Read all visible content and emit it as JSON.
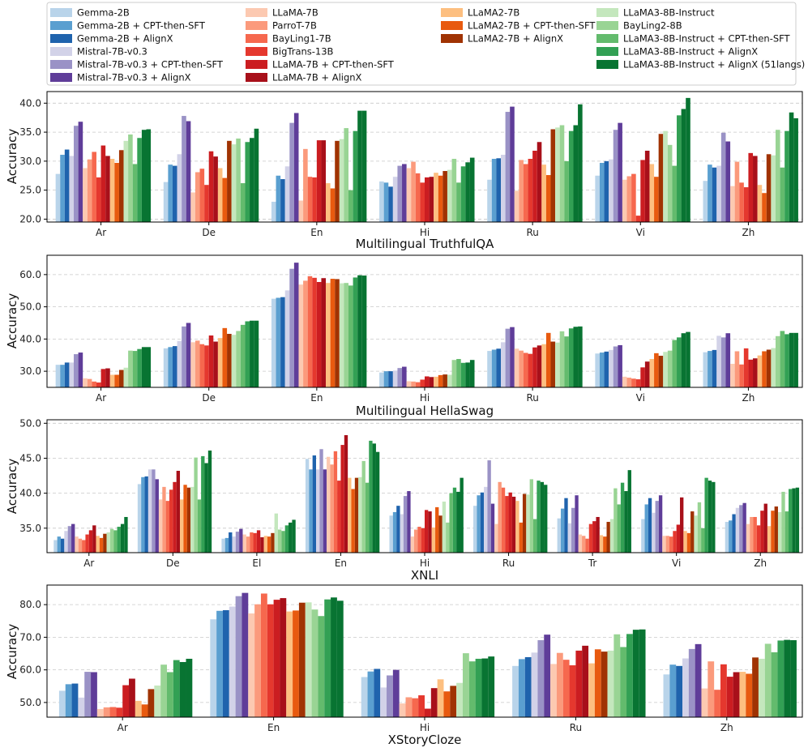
{
  "models": [
    {
      "name": "Gemma-2B",
      "color": "#b9d4ea"
    },
    {
      "name": "Gemma-2B + CPT-then-SFT",
      "color": "#5a9fd0"
    },
    {
      "name": "Gemma-2B + AlignX",
      "color": "#1f63ad"
    },
    {
      "name": "Mistral-7B-v0.3",
      "color": "#d2d2e8"
    },
    {
      "name": "Mistral-7B-v0.3 + CPT-then-SFT",
      "color": "#9a92c6"
    },
    {
      "name": "Mistral-7B-v0.3 + AlignX",
      "color": "#5f3d99"
    },
    {
      "name": "LLaMA-7B",
      "color": "#fcc9b1"
    },
    {
      "name": "ParroT-7B",
      "color": "#fb9a7c"
    },
    {
      "name": "BayLing1-7B",
      "color": "#f6684e"
    },
    {
      "name": "BigTrans-13B",
      "color": "#e5382e"
    },
    {
      "name": "LLaMA-7B + CPT-then-SFT",
      "color": "#cb1d21"
    },
    {
      "name": "LLaMA-7B + AlignX",
      "color": "#a8101a"
    },
    {
      "name": "LLaMA2-7B",
      "color": "#fdbf80"
    },
    {
      "name": "LLaMA2-7B + CPT-then-SFT",
      "color": "#e85a0f"
    },
    {
      "name": "LLaMA2-7B + AlignX",
      "color": "#a03303"
    },
    {
      "name": "LLaMA3-8B-Instruct",
      "color": "#c4e7bd"
    },
    {
      "name": "BayLing2-8B",
      "color": "#99d494"
    },
    {
      "name": "LLaMA3-8B-Instruct + CPT-then-SFT",
      "color": "#63bb6d"
    },
    {
      "name": "LLaMA3-8B-Instruct + AlignX",
      "color": "#32a054"
    },
    {
      "name": "LLaMA3-8B-Instruct + AlignX (51langs)",
      "color": "#087432"
    }
  ],
  "chart_data": [
    {
      "type": "bar",
      "title": "Multilingual TruthfulQA",
      "xlabel": "Multilingual TruthfulQA",
      "ylabel": "Accuracy",
      "ylim": [
        19.5,
        42.0
      ],
      "yticks": [
        20.0,
        25.0,
        30.0,
        35.0,
        40.0
      ],
      "grid": true,
      "categories": [
        "Ar",
        "De",
        "En",
        "Hi",
        "Ru",
        "Vi",
        "Zh"
      ],
      "values": [
        [
          27.8,
          31.1,
          32.0,
          30.9,
          36.1,
          36.8,
          28.8,
          30.3,
          31.6,
          27.2,
          32.7,
          30.9,
          30.4,
          29.7,
          31.9,
          33.5,
          34.6,
          29.5,
          34.0,
          35.4
        ],
        [
          26.4,
          29.4,
          29.2,
          31.2,
          37.8,
          36.9,
          24.6,
          28.1,
          28.7,
          25.9,
          31.7,
          30.8,
          28.8,
          27.1,
          33.5,
          32.9,
          33.9,
          26.2,
          33.3,
          34.0
        ],
        [
          23.0,
          27.5,
          26.9,
          29.1,
          36.6,
          38.3,
          23.2,
          32.1,
          27.3,
          27.2,
          33.6,
          33.6,
          26.2,
          25.3,
          33.5,
          33.8,
          35.7,
          25.0,
          35.2,
          38.7
        ],
        [
          26.5,
          26.3,
          25.6,
          27.3,
          29.2,
          29.5,
          28.8,
          29.9,
          27.9,
          26.3,
          27.2,
          27.3,
          28.0,
          27.5,
          28.3,
          28.5,
          30.4,
          26.3,
          29.1,
          29.8
        ],
        [
          26.8,
          30.4,
          30.5,
          31.1,
          38.5,
          39.4,
          24.9,
          30.2,
          29.5,
          30.4,
          31.8,
          33.3,
          29.4,
          27.6,
          35.5,
          35.8,
          36.2,
          30.0,
          35.2,
          36.2
        ],
        [
          27.5,
          29.7,
          30.0,
          30.3,
          35.4,
          36.6,
          26.8,
          27.4,
          27.8,
          20.6,
          30.2,
          31.8,
          29.5,
          27.3,
          34.7,
          35.2,
          32.8,
          29.2,
          37.9,
          39.0
        ],
        [
          26.6,
          29.4,
          28.9,
          29.2,
          34.9,
          33.4,
          25.7,
          29.9,
          26.3,
          25.5,
          31.4,
          30.9,
          25.9,
          24.5,
          31.2,
          31.0,
          35.4,
          28.9,
          35.2,
          38.4
        ]
      ],
      "extra_last": [
        35.5,
        35.6,
        38.7,
        30.6,
        39.8,
        40.9,
        37.4
      ]
    },
    {
      "type": "bar",
      "title": "Multilingual HellaSwag",
      "xlabel": "Multilingual HellaSwag",
      "ylabel": "Accuracy",
      "ylim": [
        25.0,
        66.0
      ],
      "yticks": [
        30.0,
        40.0,
        50.0,
        60.0
      ],
      "grid": true,
      "categories": [
        "Ar",
        "De",
        "En",
        "Hi",
        "Ru",
        "Vi",
        "Zh"
      ],
      "values": [
        [
          32.0,
          32.0,
          32.7,
          32.7,
          35.3,
          35.8,
          27.8,
          27.6,
          26.8,
          26.5,
          30.7,
          30.9,
          28.9,
          28.9,
          30.4,
          31.1,
          36.4,
          36.3,
          36.9,
          37.5
        ],
        [
          37.1,
          37.5,
          37.8,
          39.4,
          43.9,
          45.0,
          39.0,
          39.5,
          38.4,
          38.0,
          41.1,
          39.2,
          40.3,
          43.4,
          41.6,
          41.3,
          42.5,
          44.4,
          45.5,
          45.7
        ],
        [
          52.5,
          52.8,
          53.0,
          55.1,
          61.8,
          63.7,
          56.9,
          58.1,
          59.5,
          59.0,
          57.7,
          58.9,
          57.4,
          58.7,
          58.6,
          57.3,
          57.4,
          56.6,
          59.1,
          59.8
        ],
        [
          29.6,
          30.0,
          30.0,
          30.2,
          31.0,
          31.4,
          26.9,
          26.8,
          26.6,
          27.4,
          28.4,
          28.2,
          28.3,
          28.8,
          29.0,
          28.9,
          33.5,
          33.8,
          32.6,
          32.7
        ],
        [
          36.3,
          36.7,
          37.0,
          39.0,
          43.2,
          43.7,
          37.0,
          36.4,
          35.7,
          35.4,
          37.4,
          38.0,
          38.4,
          41.9,
          39.2,
          38.9,
          42.4,
          40.8,
          43.3,
          43.8
        ],
        [
          35.5,
          35.8,
          36.1,
          36.6,
          37.7,
          38.1,
          28.3,
          28.0,
          27.7,
          27.5,
          31.2,
          33.0,
          33.8,
          35.6,
          34.8,
          36.0,
          36.4,
          39.7,
          40.5,
          41.8
        ],
        [
          35.9,
          36.3,
          36.6,
          41.0,
          40.5,
          41.8,
          32.3,
          36.2,
          32.1,
          37.1,
          33.6,
          34.0,
          34.9,
          36.2,
          36.7,
          37.2,
          40.9,
          42.5,
          41.5,
          41.9
        ]
      ],
      "extra_last": [
        37.5,
        45.7,
        59.7,
        33.5,
        43.9,
        42.2,
        41.9
      ]
    },
    {
      "type": "bar",
      "title": "XNLI",
      "xlabel": "XNLI",
      "ylabel": "Accuracy",
      "ylim": [
        31.5,
        50.5
      ],
      "yticks": [
        35.0,
        40.0,
        45.0,
        50.0
      ],
      "grid": true,
      "categories": [
        "Ar",
        "De",
        "El",
        "En",
        "Hi",
        "Ru",
        "Tr",
        "Vi",
        "Zh"
      ],
      "values": [
        [
          33.3,
          33.8,
          33.5,
          34.6,
          35.3,
          35.6,
          33.8,
          33.5,
          33.3,
          34.1,
          34.7,
          35.4,
          33.9,
          33.6,
          34.2,
          34.4,
          34.9,
          34.7,
          35.2,
          35.6
        ],
        [
          41.3,
          42.3,
          42.4,
          43.4,
          43.4,
          42.0,
          39.1,
          40.9,
          38.9,
          40.5,
          41.6,
          43.2,
          39.1,
          41.2,
          40.8,
          40.9,
          45.1,
          39.1,
          45.3,
          44.3
        ],
        [
          33.5,
          33.6,
          34.4,
          33.8,
          34.5,
          34.9,
          34.1,
          33.8,
          34.4,
          34.3,
          34.7,
          33.7,
          33.9,
          33.8,
          34.3,
          37.1,
          34.8,
          34.6,
          35.4,
          35.8
        ],
        [
          44.9,
          43.4,
          45.4,
          43.4,
          46.3,
          43.4,
          45.2,
          44.1,
          46.0,
          41.8,
          46.9,
          48.3,
          42.2,
          40.6,
          42.2,
          42.3,
          44.6,
          41.5,
          47.5,
          47.1
        ],
        [
          36.8,
          37.3,
          38.2,
          37.0,
          39.6,
          40.3,
          33.8,
          34.8,
          35.2,
          35.0,
          37.6,
          37.4,
          35.1,
          38.0,
          36.8,
          38.8,
          35.8,
          40.0,
          40.8,
          40.2
        ],
        [
          38.2,
          39.7,
          40.1,
          40.9,
          44.7,
          38.5,
          35.6,
          41.6,
          40.8,
          39.6,
          40.1,
          39.5,
          38.9,
          35.8,
          39.9,
          39.8,
          42.0,
          36.3,
          41.8,
          41.6
        ],
        [
          36.4,
          37.8,
          39.3,
          35.7,
          37.9,
          39.7,
          34.1,
          33.9,
          33.5,
          35.6,
          36.0,
          36.6,
          34.0,
          33.8,
          35.9,
          36.3,
          40.7,
          38.4,
          41.5,
          40.3
        ],
        [
          36.3,
          38.4,
          39.3,
          37.2,
          38.9,
          39.7,
          33.9,
          33.9,
          33.8,
          34.6,
          35.5,
          39.4,
          34.6,
          34.3,
          37.4,
          36.8,
          38.7,
          35.0,
          42.2,
          41.8
        ],
        [
          35.9,
          36.1,
          37.0,
          37.9,
          38.3,
          38.6,
          35.6,
          36.6,
          36.6,
          35.4,
          37.5,
          38.5,
          35.3,
          37.5,
          38.1,
          37.3,
          40.2,
          37.4,
          40.6,
          40.7
        ]
      ],
      "extra_last": [
        36.6,
        46.1,
        36.2,
        45.9,
        42.2,
        41.2,
        43.3,
        41.6,
        40.8
      ]
    },
    {
      "type": "bar",
      "title": "XStoryCloze",
      "xlabel": "XStoryCloze",
      "ylabel": "Accuracy",
      "ylim": [
        45.5,
        86.0
      ],
      "yticks": [
        50.0,
        60.0,
        70.0,
        80.0
      ],
      "grid": true,
      "categories": [
        "Ar",
        "En",
        "Hi",
        "Ru",
        "Zh"
      ],
      "values": [
        [
          53.6,
          55.6,
          55.8,
          51.5,
          59.4,
          59.3,
          48.0,
          48.5,
          48.6,
          48.4,
          55.3,
          57.3,
          50.5,
          49.4,
          54.1,
          55.2,
          61.6,
          59.3,
          63.0,
          62.4
        ],
        [
          75.5,
          78.1,
          78.3,
          79.4,
          82.6,
          83.6,
          77.3,
          80.1,
          83.4,
          80.1,
          81.5,
          82.0,
          77.9,
          78.2,
          80.6,
          80.7,
          78.5,
          76.5,
          81.6,
          82.2
        ],
        [
          57.8,
          59.5,
          60.3,
          54.6,
          58.3,
          60.0,
          49.7,
          51.6,
          51.3,
          52.2,
          48.1,
          54.4,
          57.1,
          53.4,
          55.1,
          56.0,
          65.1,
          62.6,
          63.4,
          63.5
        ],
        [
          61.2,
          63.3,
          63.9,
          65.3,
          69.1,
          70.8,
          61.8,
          65.2,
          63.1,
          61.4,
          65.9,
          67.4,
          62.0,
          66.3,
          65.6,
          65.9,
          70.9,
          67.0,
          71.0,
          72.3
        ],
        [
          58.6,
          61.6,
          61.2,
          63.5,
          66.4,
          67.9,
          54.3,
          62.6,
          53.9,
          61.7,
          57.9,
          59.3,
          59.4,
          58.8,
          63.8,
          63.4,
          68.0,
          65.4,
          69.0,
          69.2
        ]
      ],
      "extra_last": [
        63.4,
        81.2,
        64.1,
        72.4,
        69.1
      ]
    }
  ]
}
